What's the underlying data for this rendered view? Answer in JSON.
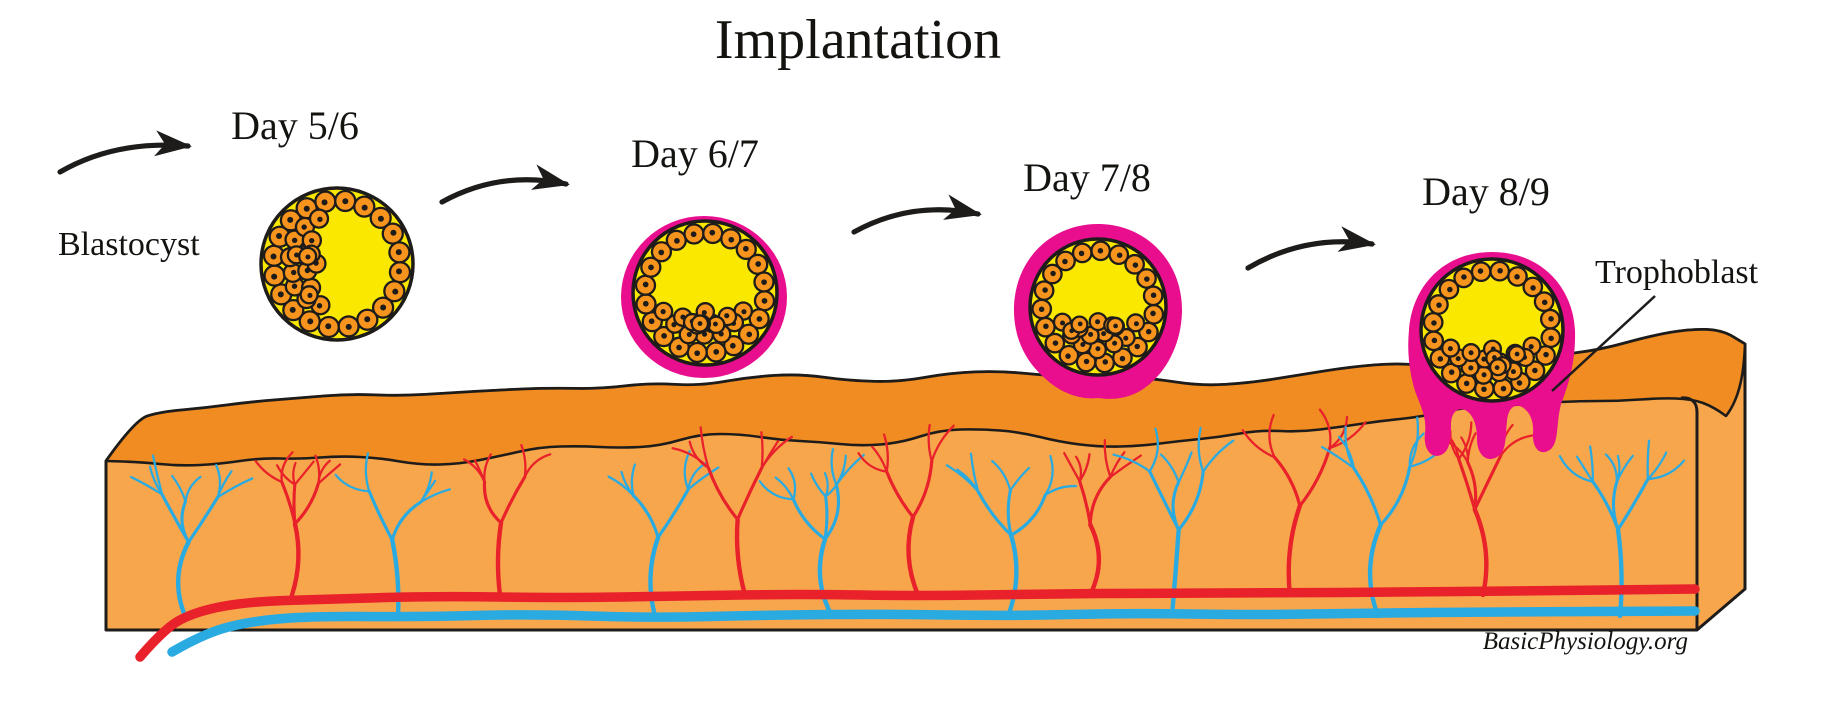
{
  "title": "Implantation",
  "stages": [
    {
      "label": "Day 5/6"
    },
    {
      "label": "Day 6/7"
    },
    {
      "label": "Day 7/8"
    },
    {
      "label": "Day 8/9"
    }
  ],
  "labels": {
    "blastocyst": "Blastocyst",
    "trophoblast": "Trophoblast"
  },
  "watermark": "BasicPhysiology.org",
  "icons": [
    {
      "name": "curved-arrow-icon",
      "count": 4
    }
  ],
  "colors": {
    "background": "#FFFFFF",
    "outline": "#1E1C1A",
    "blastocyst_yellow": "#FAE800",
    "cell_orange": "#F7941D",
    "trophoblast_pink": "#E90E8D",
    "endometrium_surface": "#F08C21",
    "endometrium_stroma": "#F7A64C",
    "artery_red": "#E8212A",
    "vein_blue": "#29ABE2"
  }
}
